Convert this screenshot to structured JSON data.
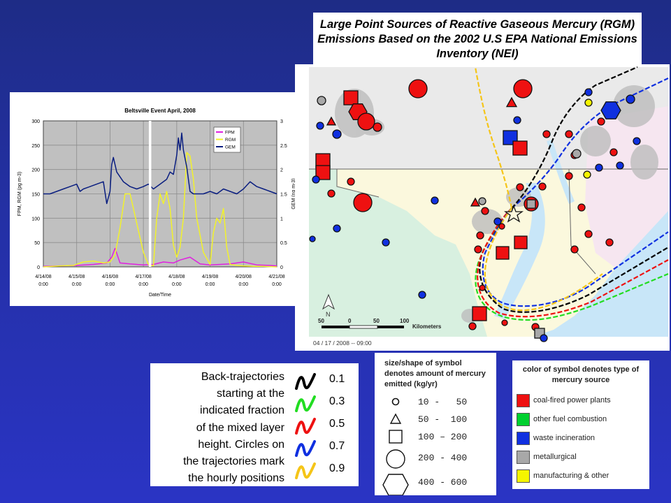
{
  "title": "Large Point Sources of Reactive Gaseous Mercury (RGM) Emissions Based on the 2002 U.S EPA National Emissions Inventory (NEI)",
  "chart_data": {
    "type": "line",
    "title": "Beltsville Event April, 2008",
    "xlabel": "Date/Time",
    "ylabel_left": "FPM, RGM (pg m-3)",
    "ylabel_right": "GEM (ng m-3)",
    "ylim_left": [
      0,
      300
    ],
    "ylim_right": [
      0,
      3
    ],
    "yticks_left": [
      "0",
      "50",
      "100",
      "150",
      "200",
      "250",
      "300"
    ],
    "yticks_right": [
      "0",
      "0.5",
      "1",
      "1.5",
      "2",
      "2.5",
      "3"
    ],
    "x_ticks": [
      {
        "date": "4/14/08",
        "time": "0:00"
      },
      {
        "date": "4/15/08",
        "time": "0:00"
      },
      {
        "date": "4/16/08",
        "time": "0:00"
      },
      {
        "date": "4/17/08",
        "time": "0:00"
      },
      {
        "date": "4/18/08",
        "time": "0:00"
      },
      {
        "date": "4/19/08",
        "time": "0:00"
      },
      {
        "date": "4/20/08",
        "time": "0:00"
      },
      {
        "date": "4/21/08",
        "time": "0:00"
      }
    ],
    "marker_day": 3.2,
    "series": [
      {
        "name": "FPM",
        "color": "#e020e0",
        "axis": "left",
        "x": [
          0,
          0.5,
          1,
          1.5,
          1.9,
          2.05,
          2.15,
          2.3,
          2.6,
          3.0,
          3.3,
          3.6,
          3.9,
          4.1,
          4.4,
          4.7,
          5.0,
          5.3,
          5.6,
          6.0,
          6.4,
          6.8,
          7.0
        ],
        "y": [
          1,
          2,
          3,
          5,
          8,
          20,
          38,
          8,
          6,
          4,
          5,
          10,
          8,
          14,
          20,
          6,
          4,
          5,
          6,
          10,
          4,
          3,
          2
        ]
      },
      {
        "name": "RGM",
        "color": "#f2f22a",
        "axis": "left",
        "x": [
          0,
          0.5,
          0.9,
          1.2,
          1.5,
          1.8,
          2.0,
          2.15,
          2.3,
          2.45,
          2.6,
          2.8,
          3.0,
          3.15,
          3.3,
          3.4,
          3.5,
          3.6,
          3.7,
          3.8,
          3.9,
          4.0,
          4.1,
          4.2,
          4.3,
          4.4,
          4.5,
          4.6,
          4.8,
          5.0,
          5.1,
          5.2,
          5.3,
          5.4,
          5.5,
          5.6,
          5.8,
          6.0,
          6.3,
          6.6,
          7.0
        ],
        "y": [
          0,
          2,
          3,
          10,
          12,
          8,
          10,
          25,
          80,
          150,
          150,
          90,
          30,
          5,
          2,
          100,
          150,
          130,
          155,
          120,
          45,
          20,
          40,
          100,
          235,
          228,
          180,
          100,
          30,
          5,
          70,
          100,
          90,
          120,
          40,
          5,
          3,
          2,
          1,
          1,
          0
        ]
      },
      {
        "name": "GEM",
        "color": "#0a1e80",
        "axis": "right",
        "x": [
          0,
          0.2,
          0.4,
          0.6,
          0.8,
          1.0,
          1.1,
          1.2,
          1.4,
          1.6,
          1.8,
          1.9,
          2.0,
          2.05,
          2.1,
          2.15,
          2.2,
          2.3,
          2.4,
          2.6,
          2.8,
          3.0,
          3.15,
          3.3,
          3.5,
          3.7,
          3.8,
          3.9,
          4.0,
          4.05,
          4.1,
          4.15,
          4.2,
          4.3,
          4.4,
          4.5,
          4.6,
          4.8,
          5.0,
          5.2,
          5.4,
          5.6,
          5.8,
          6.0,
          6.2,
          6.4,
          6.6,
          6.8,
          7.0
        ],
        "y": [
          1.5,
          1.5,
          1.55,
          1.6,
          1.65,
          1.7,
          1.55,
          1.6,
          1.65,
          1.7,
          1.75,
          1.3,
          1.55,
          2.1,
          2.25,
          2.1,
          1.95,
          1.85,
          1.75,
          1.65,
          1.6,
          1.65,
          1.7,
          1.6,
          1.7,
          1.8,
          1.95,
          1.9,
          2.3,
          2.65,
          2.4,
          2.75,
          2.4,
          2.05,
          1.55,
          1.5,
          1.5,
          1.5,
          1.55,
          1.5,
          1.6,
          1.55,
          1.5,
          1.6,
          1.75,
          1.65,
          1.6,
          1.55,
          1.5
        ]
      }
    ]
  },
  "map": {
    "scale_ticks": [
      "50",
      "0",
      "50",
      "100"
    ],
    "scale_unit": "Kilometers",
    "north_label": "N",
    "timestamp": "04 / 17 / 2008 -- 09:00",
    "colors": {
      "coal": "#ee1111",
      "other_fuel": "#00d030",
      "waste": "#1030e0",
      "metallurgical": "#a8a8a8",
      "manufacturing": "#f5f500"
    }
  },
  "trajectory_legend": {
    "description_lines": [
      "Back-trajectories",
      "starting at the",
      "indicated fraction",
      "of the mixed layer",
      "height. Circles on",
      "the trajectories mark",
      "the hourly positions"
    ],
    "items": [
      {
        "value": "0.1",
        "color": "#000000"
      },
      {
        "value": "0.3",
        "color": "#22dd22"
      },
      {
        "value": "0.5",
        "color": "#ee1111"
      },
      {
        "value": "0.7",
        "color": "#1030e0"
      },
      {
        "value": "0.9",
        "color": "#f5c518"
      }
    ]
  },
  "size_legend": {
    "title": "size/shape of symbol denotes amount of mercury emitted (kg/yr)",
    "items": [
      {
        "shape": "small-circle-icon",
        "range": "10 -   50"
      },
      {
        "shape": "triangle-icon",
        "range": "50 -  100"
      },
      {
        "shape": "square-icon",
        "range": "100 – 200"
      },
      {
        "shape": "large-circle-icon",
        "range": "200 - 400"
      },
      {
        "shape": "hexagon-icon",
        "range": "400 - 600"
      }
    ]
  },
  "color_legend": {
    "title": "color of symbol denotes type of mercury source",
    "items": [
      {
        "label": "coal-fired power plants",
        "color": "#ee1111"
      },
      {
        "label": "other fuel combustion",
        "color": "#00d030"
      },
      {
        "label": "waste incineration",
        "color": "#1030e0"
      },
      {
        "label": "metallurgical",
        "color": "#a8a8a8"
      },
      {
        "label": "manufacturing & other",
        "color": "#f5f500"
      }
    ]
  }
}
